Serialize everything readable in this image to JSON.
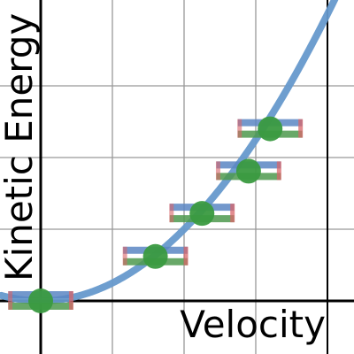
{
  "chart_data": {
    "type": "scatter",
    "title": "",
    "xlabel": "Velocity",
    "ylabel": "Kinetic Energy",
    "xlim": [
      -0.55,
      4.4
    ],
    "ylim": [
      -0.55,
      3.9
    ],
    "grid": true,
    "curve": {
      "kind": "quadratic",
      "coefficient": 0.25,
      "color": "#6699cc"
    },
    "points": [
      {
        "x": 0.0,
        "y": 0.0,
        "xerr": 0.45
      },
      {
        "x": 1.6,
        "y": 0.62,
        "xerr": 0.45
      },
      {
        "x": 2.25,
        "y": 1.22,
        "xerr": 0.45
      },
      {
        "x": 2.9,
        "y": 1.81,
        "xerr": 0.45
      },
      {
        "x": 3.2,
        "y": 2.4,
        "xerr": 0.45
      }
    ],
    "colors": {
      "point": "#3a9a40",
      "error_bar_top": "#5b87c4",
      "error_bar_bottom": "#4e9a4e",
      "error_bar_cap": "#d9666a",
      "grid": "#999999",
      "axis": "#000000"
    }
  }
}
